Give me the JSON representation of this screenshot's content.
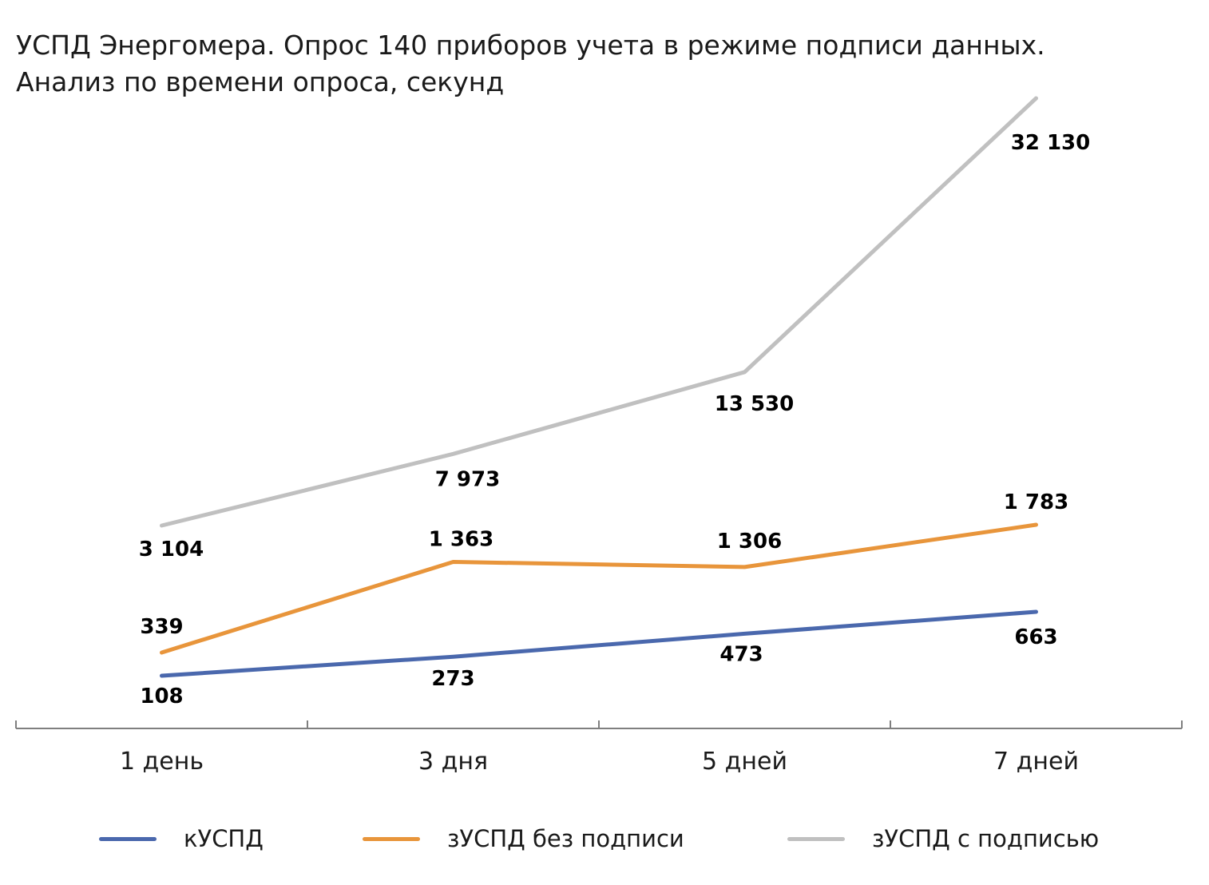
{
  "title": {
    "line1": "УСПД Энергомера. Опрос 140 приборов учета в режиме подписи данных.",
    "line2": "Анализ по времени опроса, секунд"
  },
  "chart_data": {
    "type": "line",
    "title": "УСПД Энергомера. Опрос 140 приборов учета в режиме подписи данных. Анализ по времени опроса, секунд",
    "categories": [
      "1 день",
      "3 дня",
      "5 дней",
      "7 дней"
    ],
    "series": [
      {
        "name": "кУСПД",
        "values": [
          108,
          273,
          473,
          663
        ],
        "labels": [
          "108",
          "273",
          "473",
          "663"
        ],
        "color": "#4a68ad"
      },
      {
        "name": "зУСПД без подписи",
        "values": [
          339,
          1363,
          1306,
          1783
        ],
        "labels": [
          "339",
          "1 363",
          "1 306",
          "1 783"
        ],
        "color": "#e8953b"
      },
      {
        "name": "зУСПД с подписью",
        "values": [
          3104,
          7973,
          13530,
          32130
        ],
        "labels": [
          "3 104",
          "7 973",
          "13 530",
          "32 130"
        ],
        "color": "#c0c0c0"
      }
    ],
    "xlabel": "",
    "ylabel": "",
    "y_axis_visible": false,
    "grid": false,
    "legend_position": "bottom"
  },
  "legend": {
    "items": [
      {
        "label": "кУСПД",
        "color": "#4a68ad"
      },
      {
        "label": "зУСПД без подписи",
        "color": "#e8953b"
      },
      {
        "label": "зУСПД с подписью",
        "color": "#c0c0c0"
      }
    ]
  }
}
